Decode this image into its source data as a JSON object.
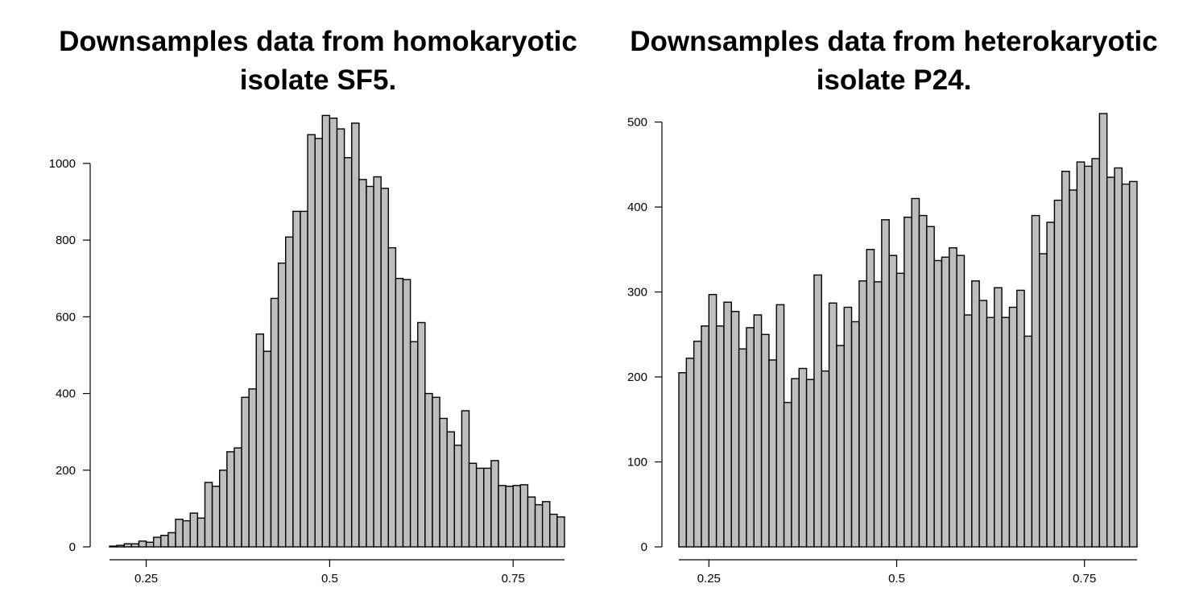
{
  "chart_data": [
    {
      "type": "bar",
      "title_lines": [
        "Downsamples data from homokaryotic",
        "isolate SF5."
      ],
      "xlabel": "",
      "ylabel": "",
      "bin_start": 0.2,
      "bin_width": 0.01,
      "xlim": [
        0.2,
        0.82
      ],
      "ylim": [
        0,
        1130
      ],
      "x_ticks": [
        0.25,
        0.5,
        0.75
      ],
      "x_tick_labels": [
        "0.25",
        "0.5",
        "0.75"
      ],
      "y_ticks": [
        0,
        200,
        400,
        600,
        800,
        1000
      ],
      "y_tick_labels": [
        "0",
        "200",
        "400",
        "600",
        "800",
        "1000"
      ],
      "grid": false,
      "bar_color": "#bebebe",
      "values": [
        2,
        4,
        8,
        8,
        15,
        12,
        25,
        30,
        37,
        72,
        68,
        88,
        75,
        168,
        158,
        200,
        248,
        258,
        390,
        412,
        555,
        510,
        648,
        740,
        808,
        875,
        875,
        1075,
        1065,
        1125,
        1118,
        1090,
        1015,
        1105,
        958,
        940,
        965,
        935,
        780,
        700,
        697,
        535,
        585,
        400,
        390,
        335,
        300,
        265,
        355,
        218,
        205,
        205,
        225,
        160,
        158,
        160,
        162,
        130,
        110,
        118,
        85,
        78
      ]
    },
    {
      "type": "bar",
      "title_lines": [
        "Downsamples data from heterokaryotic",
        "isolate P24."
      ],
      "xlabel": "",
      "ylabel": "",
      "bin_start": 0.21,
      "bin_width": 0.01,
      "xlim": [
        0.21,
        0.82
      ],
      "ylim": [
        0,
        510
      ],
      "x_ticks": [
        0.25,
        0.5,
        0.75
      ],
      "x_tick_labels": [
        "0.25",
        "0.5",
        "0.75"
      ],
      "y_ticks": [
        0,
        100,
        200,
        300,
        400,
        500
      ],
      "y_tick_labels": [
        "0",
        "100",
        "200",
        "300",
        "400",
        "500"
      ],
      "grid": false,
      "bar_color": "#bebebe",
      "values": [
        205,
        222,
        242,
        260,
        297,
        260,
        288,
        277,
        233,
        258,
        273,
        250,
        220,
        285,
        170,
        198,
        210,
        197,
        320,
        207,
        287,
        237,
        282,
        265,
        313,
        350,
        312,
        385,
        343,
        322,
        388,
        410,
        390,
        377,
        337,
        341,
        352,
        343,
        273,
        313,
        290,
        270,
        305,
        270,
        282,
        302,
        248,
        390,
        345,
        382,
        408,
        442,
        420,
        453,
        448,
        457,
        510,
        435,
        446,
        427,
        430
      ]
    }
  ]
}
